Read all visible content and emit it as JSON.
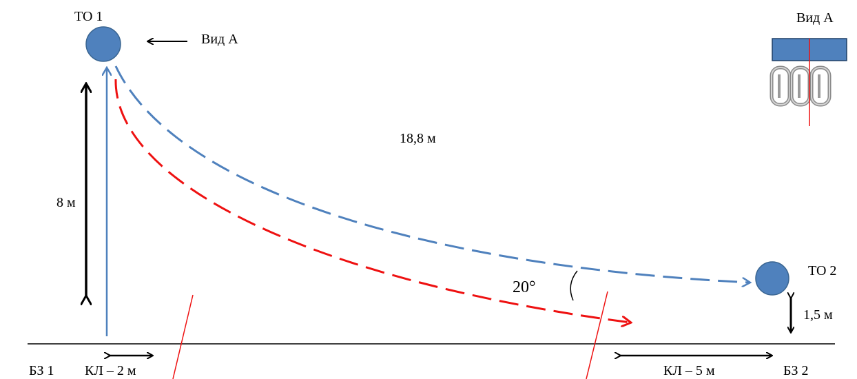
{
  "labels": {
    "to1": "ТО 1",
    "to2": "ТО 2",
    "view_a_pointer": "Вид А",
    "view_a_inset": "Вид А",
    "distance": "18,8 м",
    "height": "8 м",
    "angle": "20°",
    "to2_height": "1,5 м",
    "bz1": "БЗ 1",
    "bz2": "БЗ 2",
    "kl_left": "КЛ – 2 м",
    "kl_right": "КЛ – 5 м"
  },
  "colors": {
    "anchor_node": "#4f81bd",
    "blue_line": "#4f81bd",
    "red_line": "#ee1111",
    "black": "#000000",
    "carabiner": "#b8b8b8"
  },
  "icons": {
    "carabiners": "carabiner-icon"
  }
}
